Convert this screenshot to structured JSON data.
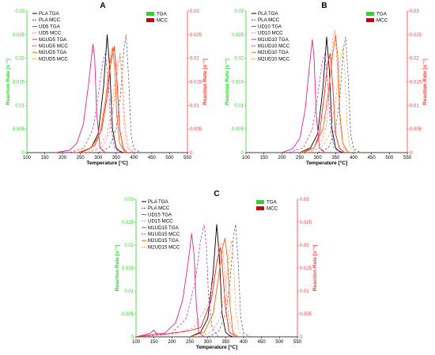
{
  "colors": {
    "left_axis": "#2bd62b",
    "right_axis": "#ff3b3b",
    "tga_legend": "#2bd62b",
    "mcc_legend": "#cc0000"
  },
  "type_legend": {
    "tga": "TGA",
    "mcc": "MCC"
  },
  "chart_data": [
    {
      "type": "line",
      "panel": "A",
      "xlabel": "Temperature [°C]",
      "ylabel_left": "Reaction Rate [s⁻¹]",
      "ylabel_right": "Reaction Rate [s⁻¹]",
      "xlim": [
        100,
        550
      ],
      "ylim_left": [
        0,
        0.03
      ],
      "ylim_right": [
        0,
        0.03
      ],
      "x_ticks": [
        100,
        150,
        200,
        250,
        300,
        350,
        400,
        450,
        500,
        550
      ],
      "y_ticks": [
        0,
        0.005,
        0.01,
        0.015,
        0.02,
        0.025,
        0.03
      ],
      "grid": false,
      "series": [
        {
          "name": "PLA TGA",
          "color": "#000000",
          "dash": "",
          "x": [
            250,
            280,
            300,
            315,
            325,
            332,
            340,
            350,
            360,
            370
          ],
          "y": [
            0,
            0.001,
            0.004,
            0.014,
            0.025,
            0.018,
            0.005,
            0.001,
            0.0003,
            0
          ]
        },
        {
          "name": "PLA MCC",
          "color": "#555555",
          "dash": "3,2",
          "x": [
            300,
            330,
            350,
            362,
            372,
            378,
            385,
            392,
            400,
            420
          ],
          "y": [
            0,
            0.001,
            0.005,
            0.012,
            0.022,
            0.025,
            0.016,
            0.004,
            0.0008,
            0
          ]
        },
        {
          "name": "UD5 TGA",
          "color": "#ff2020",
          "dash": "",
          "x": [
            250,
            290,
            310,
            325,
            335,
            345,
            352,
            360,
            370,
            380
          ],
          "y": [
            0,
            0.0015,
            0.005,
            0.012,
            0.019,
            0.0225,
            0.016,
            0.005,
            0.001,
            0
          ]
        },
        {
          "name": "UD5 MCC",
          "color": "#ff8080",
          "dash": "3,2",
          "x": [
            270,
            310,
            330,
            345,
            355,
            362,
            368,
            375,
            385,
            400
          ],
          "y": [
            0,
            0.001,
            0.004,
            0.011,
            0.018,
            0.021,
            0.016,
            0.006,
            0.001,
            0
          ]
        },
        {
          "name": "M1UD5 TGA",
          "color": "#e8208a",
          "dash": "",
          "x": [
            180,
            220,
            240,
            258,
            272,
            285,
            290,
            296,
            305,
            320
          ],
          "y": [
            0,
            0.0005,
            0.002,
            0.006,
            0.014,
            0.023,
            0.02,
            0.008,
            0.001,
            0
          ]
        },
        {
          "name": "M1UD5 MCC",
          "color": "#c020c0",
          "dash": "3,2",
          "x": [
            220,
            260,
            285,
            300,
            312,
            320,
            328,
            335,
            345,
            360
          ],
          "y": [
            0,
            0.001,
            0.005,
            0.012,
            0.019,
            0.021,
            0.015,
            0.006,
            0.001,
            0
          ]
        },
        {
          "name": "M2UD5 TGA",
          "color": "#ff6600",
          "dash": "",
          "x": [
            240,
            280,
            305,
            320,
            332,
            340,
            346,
            352,
            360,
            375
          ],
          "y": [
            0,
            0.001,
            0.004,
            0.011,
            0.019,
            0.0223,
            0.018,
            0.008,
            0.002,
            0
          ]
        },
        {
          "name": "M2UD5 MCC",
          "color": "#ff9a40",
          "dash": "3,2",
          "x": [
            260,
            300,
            325,
            340,
            352,
            360,
            366,
            372,
            380,
            400
          ],
          "y": [
            0,
            0.001,
            0.004,
            0.011,
            0.018,
            0.021,
            0.016,
            0.006,
            0.001,
            0
          ]
        }
      ]
    },
    {
      "type": "line",
      "panel": "B",
      "xlabel": "Temperature [°C]",
      "ylabel_left": "Reaction Rate [s⁻¹]",
      "ylabel_right": "Reaction Rate [s⁻¹]",
      "xlim": [
        100,
        550
      ],
      "ylim_left": [
        0,
        0.03
      ],
      "ylim_right": [
        0,
        0.03
      ],
      "x_ticks": [
        100,
        150,
        200,
        250,
        300,
        350,
        400,
        450,
        500,
        550
      ],
      "y_ticks": [
        0,
        0.005,
        0.01,
        0.015,
        0.02,
        0.025,
        0.03
      ],
      "grid": false,
      "series": [
        {
          "name": "PLA TGA",
          "color": "#000000",
          "dash": "",
          "x": [
            250,
            280,
            300,
            315,
            325,
            332,
            340,
            350,
            360,
            370
          ],
          "y": [
            0,
            0.001,
            0.004,
            0.014,
            0.0245,
            0.018,
            0.005,
            0.001,
            0.0003,
            0
          ]
        },
        {
          "name": "PLA MCC",
          "color": "#555555",
          "dash": "3,2",
          "x": [
            300,
            330,
            350,
            362,
            372,
            378,
            385,
            392,
            400,
            420
          ],
          "y": [
            0,
            0.001,
            0.005,
            0.012,
            0.022,
            0.0245,
            0.016,
            0.004,
            0.0008,
            0
          ]
        },
        {
          "name": "UD10 TGA",
          "color": "#ff2020",
          "dash": "",
          "x": [
            260,
            290,
            305,
            318,
            328,
            335,
            342,
            350,
            360,
            375
          ],
          "y": [
            0,
            0.001,
            0.004,
            0.012,
            0.019,
            0.021,
            0.014,
            0.004,
            0.001,
            0
          ]
        },
        {
          "name": "UD10 MCC",
          "color": "#ff8080",
          "dash": "3,2",
          "x": [
            270,
            305,
            325,
            335,
            342,
            348,
            355,
            362,
            372,
            390
          ],
          "y": [
            0,
            0.001,
            0.006,
            0.016,
            0.024,
            0.026,
            0.018,
            0.006,
            0.001,
            0
          ]
        },
        {
          "name": "M1UD10 TGA",
          "color": "#e8208a",
          "dash": "",
          "x": [
            200,
            230,
            250,
            265,
            278,
            285,
            290,
            296,
            305,
            320
          ],
          "y": [
            0,
            0.0008,
            0.003,
            0.009,
            0.019,
            0.024,
            0.02,
            0.008,
            0.001,
            0
          ]
        },
        {
          "name": "M1UD10 MCC",
          "color": "#c020c0",
          "dash": "3,2",
          "x": [
            220,
            260,
            285,
            300,
            312,
            320,
            328,
            335,
            345,
            360
          ],
          "y": [
            0,
            0.001,
            0.005,
            0.012,
            0.019,
            0.021,
            0.015,
            0.006,
            0.001,
            0
          ]
        },
        {
          "name": "M2UD10 TGA",
          "color": "#ff6600",
          "dash": "",
          "x": [
            250,
            290,
            315,
            330,
            342,
            350,
            356,
            362,
            370,
            385
          ],
          "y": [
            0,
            0.001,
            0.005,
            0.013,
            0.021,
            0.025,
            0.02,
            0.008,
            0.002,
            0
          ]
        },
        {
          "name": "M2UD10 MCC",
          "color": "#ff9a40",
          "dash": "3,2",
          "x": [
            270,
            310,
            335,
            350,
            362,
            370,
            376,
            382,
            390,
            410
          ],
          "y": [
            0,
            0.001,
            0.004,
            0.011,
            0.019,
            0.0225,
            0.017,
            0.006,
            0.001,
            0
          ]
        }
      ]
    },
    {
      "type": "line",
      "panel": "C",
      "xlabel": "Temperature [°C]",
      "ylabel_left": "Reaction Rate [s⁻¹]",
      "ylabel_right": "Reaction Rate [s⁻¹]",
      "xlim": [
        100,
        550
      ],
      "ylim_left": [
        0,
        0.03
      ],
      "ylim_right": [
        0,
        0.03
      ],
      "x_ticks": [
        100,
        150,
        200,
        250,
        300,
        350,
        400,
        450,
        500,
        550
      ],
      "y_ticks": [
        0,
        0.005,
        0.01,
        0.015,
        0.02,
        0.025,
        0.03
      ],
      "grid": false,
      "series": [
        {
          "name": "PLA TGA",
          "color": "#000000",
          "dash": "",
          "x": [
            250,
            280,
            300,
            315,
            325,
            332,
            340,
            350,
            360,
            370
          ],
          "y": [
            0,
            0.001,
            0.004,
            0.014,
            0.0245,
            0.018,
            0.005,
            0.001,
            0.0003,
            0
          ]
        },
        {
          "name": "PLA MCC",
          "color": "#555555",
          "dash": "3,2",
          "x": [
            300,
            330,
            350,
            362,
            372,
            378,
            385,
            392,
            400,
            420
          ],
          "y": [
            0,
            0.001,
            0.005,
            0.012,
            0.022,
            0.0245,
            0.016,
            0.004,
            0.0008,
            0
          ]
        },
        {
          "name": "UD15 TGA",
          "color": "#ff2020",
          "dash": "",
          "x": [
            100,
            140,
            150,
            155,
            170,
            240,
            280,
            310,
            325,
            335,
            340,
            350,
            360,
            380
          ],
          "y": [
            0,
            0.0008,
            0.0015,
            0.0008,
            0.0005,
            0.0012,
            0.002,
            0.008,
            0.016,
            0.0195,
            0.016,
            0.006,
            0.001,
            0
          ]
        },
        {
          "name": "UD15 MCC",
          "color": "#ff8080",
          "dash": "3,2",
          "x": [
            100,
            200,
            260,
            300,
            320,
            332,
            340,
            348,
            358,
            375
          ],
          "y": [
            0,
            0.0005,
            0.002,
            0.007,
            0.014,
            0.02,
            0.0205,
            0.014,
            0.004,
            0
          ]
        },
        {
          "name": "M1UD15 TGA",
          "color": "#e8208a",
          "dash": "",
          "x": [
            100,
            180,
            210,
            230,
            245,
            255,
            262,
            268,
            275,
            290
          ],
          "y": [
            0,
            0.0008,
            0.003,
            0.008,
            0.016,
            0.0225,
            0.018,
            0.007,
            0.001,
            0
          ]
        },
        {
          "name": "M1UD15 MCC",
          "color": "#c020c0",
          "dash": "3,2",
          "x": [
            100,
            200,
            240,
            265,
            280,
            290,
            296,
            302,
            312,
            330
          ],
          "y": [
            0,
            0.0008,
            0.004,
            0.012,
            0.021,
            0.0245,
            0.02,
            0.009,
            0.002,
            0
          ]
        },
        {
          "name": "M2UD15 TGA",
          "color": "#ff6600",
          "dash": "",
          "x": [
            250,
            290,
            315,
            328,
            340,
            348,
            355,
            362,
            370,
            385
          ],
          "y": [
            0,
            0.001,
            0.005,
            0.012,
            0.019,
            0.0215,
            0.017,
            0.007,
            0.001,
            0
          ]
        },
        {
          "name": "M2UD15 MCC",
          "color": "#ff9a40",
          "dash": "3,2",
          "x": [
            270,
            310,
            335,
            350,
            360,
            366,
            372,
            378,
            388,
            405
          ],
          "y": [
            0,
            0.001,
            0.004,
            0.011,
            0.018,
            0.021,
            0.016,
            0.006,
            0.001,
            0
          ]
        }
      ]
    }
  ]
}
